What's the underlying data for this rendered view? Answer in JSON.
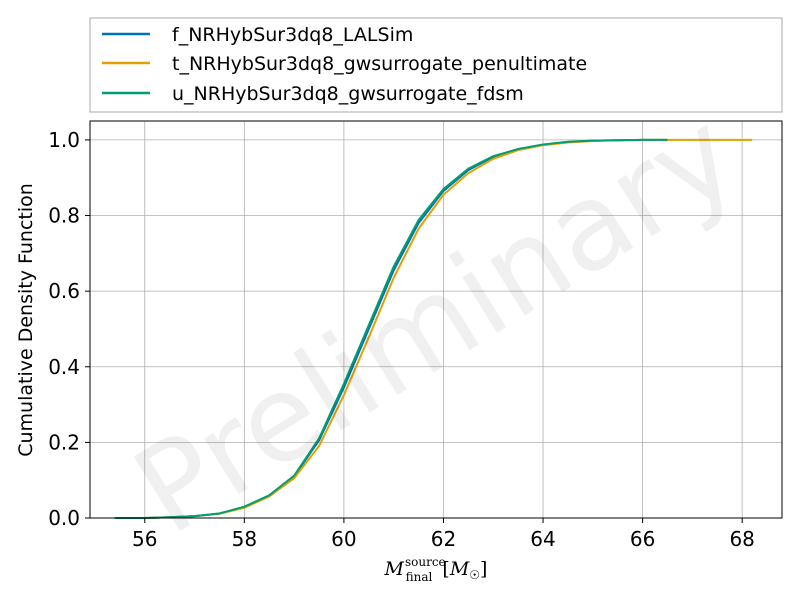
{
  "chart_data": {
    "type": "line",
    "title": "",
    "xlabel": "M_final^source [M_☉]",
    "ylabel": "Cumulative Density Function",
    "xlim": [
      54.9,
      68.8
    ],
    "ylim": [
      0.0,
      1.05
    ],
    "xticks": [
      56,
      58,
      60,
      62,
      64,
      66,
      68
    ],
    "yticks": [
      0.0,
      0.2,
      0.4,
      0.6,
      0.8,
      1.0
    ],
    "grid": true,
    "legend_position": "above plot",
    "watermark": "Preliminary",
    "series": [
      {
        "name": "f_NRHybSur3dq8_LALSim",
        "color": "#0072B2",
        "x": [
          55.4,
          56.0,
          56.5,
          57.0,
          57.5,
          58.0,
          58.5,
          59.0,
          59.5,
          60.0,
          60.5,
          61.0,
          61.5,
          62.0,
          62.5,
          63.0,
          63.5,
          64.0,
          64.5,
          65.0,
          65.5,
          66.0,
          66.5
        ],
        "y": [
          0.0,
          0.0,
          0.002,
          0.005,
          0.012,
          0.028,
          0.058,
          0.11,
          0.205,
          0.345,
          0.5,
          0.655,
          0.78,
          0.865,
          0.92,
          0.955,
          0.975,
          0.987,
          0.994,
          0.998,
          0.999,
          1.0,
          1.0
        ]
      },
      {
        "name": "t_NRHybSur3dq8_gwsurrogate_penultimate",
        "color": "#E69F00",
        "x": [
          55.4,
          56.0,
          56.5,
          57.0,
          57.5,
          58.0,
          58.5,
          59.0,
          59.5,
          60.0,
          60.5,
          61.0,
          61.5,
          62.0,
          62.5,
          63.0,
          63.5,
          64.0,
          64.5,
          65.0,
          65.5,
          66.0,
          67.0,
          68.2
        ],
        "y": [
          0.0,
          0.0,
          0.002,
          0.005,
          0.011,
          0.027,
          0.057,
          0.105,
          0.19,
          0.325,
          0.478,
          0.635,
          0.765,
          0.855,
          0.912,
          0.95,
          0.973,
          0.986,
          0.993,
          0.997,
          0.999,
          1.0,
          1.0,
          1.0
        ]
      },
      {
        "name": "u_NRHybSur3dq8_gwsurrogate_fdsm",
        "color": "#009E73",
        "x": [
          55.4,
          56.0,
          56.5,
          57.0,
          57.5,
          58.0,
          58.5,
          59.0,
          59.5,
          60.0,
          60.5,
          61.0,
          61.5,
          62.0,
          62.5,
          63.0,
          63.5,
          64.0,
          64.5,
          65.0,
          65.5,
          66.0,
          66.5
        ],
        "y": [
          0.0,
          0.0,
          0.002,
          0.005,
          0.012,
          0.03,
          0.06,
          0.112,
          0.21,
          0.355,
          0.51,
          0.665,
          0.788,
          0.87,
          0.924,
          0.957,
          0.976,
          0.988,
          0.995,
          0.998,
          0.999,
          1.0,
          1.0
        ]
      }
    ]
  }
}
